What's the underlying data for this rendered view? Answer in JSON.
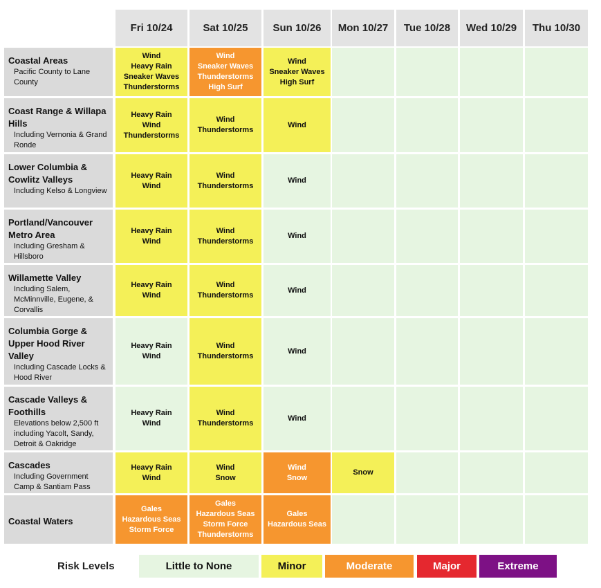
{
  "header": {
    "columns": [
      "Fri 10/24",
      "Sat 10/25",
      "Sun 10/26",
      "Mon 10/27",
      "Tue 10/28",
      "Wed 10/29",
      "Thu 10/30"
    ]
  },
  "rows": [
    {
      "region": "Coastal Areas",
      "detail": "Pacific County to Lane County",
      "cells": [
        {
          "risk": 1,
          "hazards": [
            "Wind",
            "Heavy Rain",
            "Sneaker Waves",
            "Thunderstorms"
          ]
        },
        {
          "risk": 2,
          "hazards": [
            "Wind",
            "Sneaker Waves",
            "Thunderstorms",
            "High Surf"
          ]
        },
        {
          "risk": 1,
          "hazards": [
            "Wind",
            "Sneaker Waves",
            "High Surf"
          ]
        },
        {
          "risk": 0,
          "hazards": []
        },
        {
          "risk": 0,
          "hazards": []
        },
        {
          "risk": 0,
          "hazards": []
        },
        {
          "risk": 0,
          "hazards": []
        }
      ]
    },
    {
      "region": "Coast Range & Willapa Hills",
      "detail": "Including Vernonia & Grand Ronde",
      "cells": [
        {
          "risk": 1,
          "hazards": [
            "Heavy Rain",
            "Wind",
            "Thunderstorms"
          ]
        },
        {
          "risk": 1,
          "hazards": [
            "Wind",
            "Thunderstorms"
          ]
        },
        {
          "risk": 1,
          "hazards": [
            "Wind"
          ]
        },
        {
          "risk": 0,
          "hazards": []
        },
        {
          "risk": 0,
          "hazards": []
        },
        {
          "risk": 0,
          "hazards": []
        },
        {
          "risk": 0,
          "hazards": []
        }
      ]
    },
    {
      "region": "Lower Columbia & Cowlitz Valleys",
      "detail": "Including Kelso & Longview",
      "cells": [
        {
          "risk": 1,
          "hazards": [
            "Heavy Rain",
            "Wind"
          ]
        },
        {
          "risk": 1,
          "hazards": [
            "Wind",
            "Thunderstorms"
          ]
        },
        {
          "risk": 0,
          "hazards": [
            "Wind"
          ]
        },
        {
          "risk": 0,
          "hazards": []
        },
        {
          "risk": 0,
          "hazards": []
        },
        {
          "risk": 0,
          "hazards": []
        },
        {
          "risk": 0,
          "hazards": []
        }
      ]
    },
    {
      "region": "Portland/Vancouver Metro Area",
      "detail": "Including Gresham & Hillsboro",
      "cells": [
        {
          "risk": 1,
          "hazards": [
            "Heavy Rain",
            "Wind"
          ]
        },
        {
          "risk": 1,
          "hazards": [
            "Wind",
            "Thunderstorms"
          ]
        },
        {
          "risk": 0,
          "hazards": [
            "Wind"
          ]
        },
        {
          "risk": 0,
          "hazards": []
        },
        {
          "risk": 0,
          "hazards": []
        },
        {
          "risk": 0,
          "hazards": []
        },
        {
          "risk": 0,
          "hazards": []
        }
      ]
    },
    {
      "region": "Willamette Valley",
      "detail": "Including Salem, McMinnville, Eugene, & Corvallis",
      "cells": [
        {
          "risk": 1,
          "hazards": [
            "Heavy Rain",
            "Wind"
          ]
        },
        {
          "risk": 1,
          "hazards": [
            "Wind",
            "Thunderstorms"
          ]
        },
        {
          "risk": 0,
          "hazards": [
            "Wind"
          ]
        },
        {
          "risk": 0,
          "hazards": []
        },
        {
          "risk": 0,
          "hazards": []
        },
        {
          "risk": 0,
          "hazards": []
        },
        {
          "risk": 0,
          "hazards": []
        }
      ]
    },
    {
      "region": "Columbia Gorge & Upper Hood River Valley",
      "detail": "Including Cascade Locks & Hood River",
      "cells": [
        {
          "risk": 0,
          "hazards": [
            "Heavy Rain",
            "Wind"
          ]
        },
        {
          "risk": 1,
          "hazards": [
            "Wind",
            "Thunderstorms"
          ]
        },
        {
          "risk": 0,
          "hazards": [
            "Wind"
          ]
        },
        {
          "risk": 0,
          "hazards": []
        },
        {
          "risk": 0,
          "hazards": []
        },
        {
          "risk": 0,
          "hazards": []
        },
        {
          "risk": 0,
          "hazards": []
        }
      ]
    },
    {
      "region": "Cascade Valleys & Foothills",
      "detail": "Elevations below 2,500 ft including Yacolt, Sandy, Detroit & Oakridge",
      "cells": [
        {
          "risk": 0,
          "hazards": [
            "Heavy Rain",
            "Wind"
          ]
        },
        {
          "risk": 1,
          "hazards": [
            "Wind",
            "Thunderstorms"
          ]
        },
        {
          "risk": 0,
          "hazards": [
            "Wind"
          ]
        },
        {
          "risk": 0,
          "hazards": []
        },
        {
          "risk": 0,
          "hazards": []
        },
        {
          "risk": 0,
          "hazards": []
        },
        {
          "risk": 0,
          "hazards": []
        }
      ]
    },
    {
      "region": "Cascades",
      "detail": "Including Government Camp & Santiam Pass",
      "cells": [
        {
          "risk": 1,
          "hazards": [
            "Heavy Rain",
            "Wind"
          ]
        },
        {
          "risk": 1,
          "hazards": [
            "Wind",
            "Snow"
          ]
        },
        {
          "risk": 2,
          "hazards": [
            "Wind",
            "Snow"
          ]
        },
        {
          "risk": 1,
          "hazards": [
            "Snow"
          ]
        },
        {
          "risk": 0,
          "hazards": []
        },
        {
          "risk": 0,
          "hazards": []
        },
        {
          "risk": 0,
          "hazards": []
        }
      ]
    },
    {
      "region": "Coastal Waters",
      "cells": [
        {
          "risk": 2,
          "hazards": [
            "Gales",
            "Hazardous Seas",
            "Storm Force"
          ]
        },
        {
          "risk": 2,
          "hazards": [
            "Gales",
            "Hazardous Seas",
            "Storm Force",
            "Thunderstorms"
          ]
        },
        {
          "risk": 2,
          "hazards": [
            "Gales",
            "Hazardous Seas"
          ]
        },
        {
          "risk": 0,
          "hazards": []
        },
        {
          "risk": 0,
          "hazards": []
        },
        {
          "risk": 0,
          "hazards": []
        },
        {
          "risk": 0,
          "hazards": []
        }
      ]
    }
  ],
  "legend": {
    "title": "Risk Levels",
    "levels": [
      {
        "label": "Little to None",
        "color": "#e6f5e1",
        "text_color": "#111111"
      },
      {
        "label": "Minor",
        "color": "#f4f058",
        "text_color": "#111111"
      },
      {
        "label": "Moderate",
        "color": "#f6962f",
        "text_color": "#ffffff"
      },
      {
        "label": "Major",
        "color": "#e5282f",
        "text_color": "#ffffff"
      },
      {
        "label": "Extreme",
        "color": "#7d1185",
        "text_color": "#ffffff"
      }
    ]
  }
}
